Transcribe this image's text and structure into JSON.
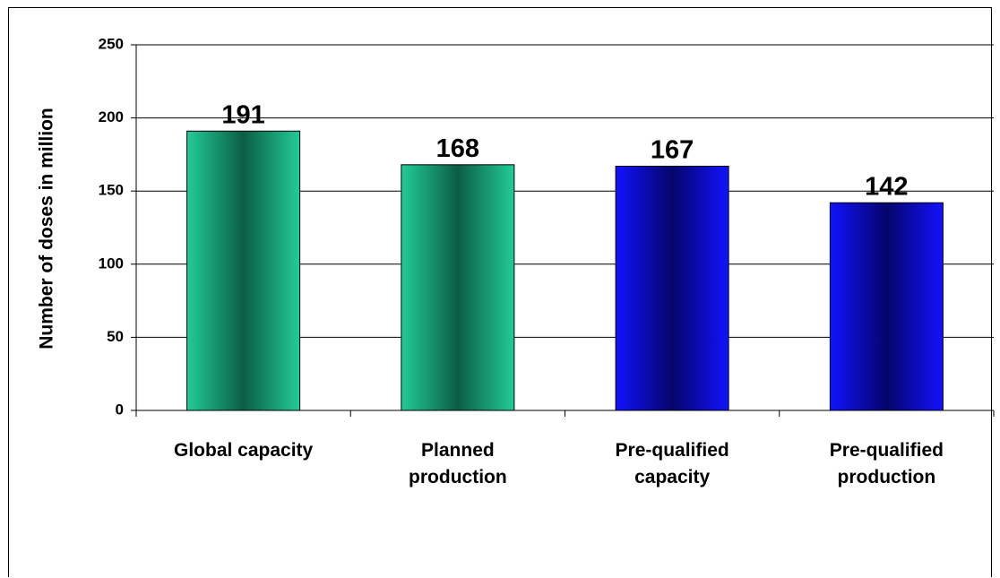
{
  "chart_data": {
    "type": "bar",
    "title": "",
    "xlabel": "",
    "ylabel": "Number of doses in million",
    "ylim": [
      0,
      250
    ],
    "yticks": [
      0,
      50,
      100,
      150,
      200,
      250
    ],
    "grid": true,
    "categories": [
      [
        "Global capacity"
      ],
      [
        "Planned",
        "production"
      ],
      [
        "Pre-qualified",
        "capacity"
      ],
      [
        "Pre-qualified",
        "production"
      ]
    ],
    "values": [
      191,
      168,
      167,
      142
    ],
    "data_labels": [
      "191",
      "168",
      "167",
      "142"
    ],
    "colors": {
      "green_mid": "#0b5e44",
      "green_edge": "#22cc96",
      "blue_mid": "#05056a",
      "blue_edge": "#1212ff"
    },
    "bar_color_keys": [
      "green",
      "green",
      "blue",
      "blue"
    ]
  }
}
